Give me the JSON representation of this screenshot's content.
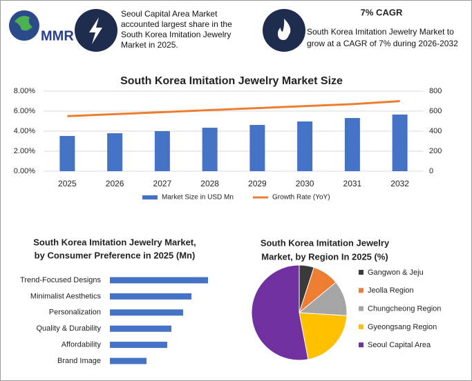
{
  "header": {
    "logo": "MMR",
    "share_note": "Seoul Capital Area Market accounted largest share in the South Korea Imitation Jewelry Market in 2025.",
    "cagr_title": "7% CAGR",
    "cagr_note": "South Korea Imitation Jewelry Market to grow at a CAGR of 7% during 2026-2032"
  },
  "chart_data": [
    {
      "type": "combo",
      "title": "South Korea Imitation Jewelry Market Size",
      "categories": [
        "2025",
        "2026",
        "2027",
        "2028",
        "2029",
        "2030",
        "2031",
        "2032"
      ],
      "series": [
        {
          "name": "Market Size in USD Mn",
          "type": "bar",
          "axis": "y2",
          "color": "#4472c4",
          "values": [
            352,
            379,
            400,
            434,
            462,
            497,
            531,
            566
          ]
        },
        {
          "name": "Growth Rate (YoY)",
          "type": "line",
          "color": "#ed7d31",
          "values": [
            5.5,
            5.7,
            5.9,
            6.1,
            6.3,
            6.5,
            6.7,
            7.0
          ]
        }
      ],
      "ylim": [
        0,
        8
      ],
      "yticks": [
        {
          "value": 0,
          "label": "0.00%"
        },
        {
          "value": 2,
          "label": "2.00%"
        },
        {
          "value": 4,
          "label": "4.00%"
        },
        {
          "value": 6,
          "label": "6.00%"
        },
        {
          "value": 8,
          "label": "8.00%"
        }
      ],
      "y2lim": [
        0,
        800
      ],
      "y2ticks": [
        0,
        200,
        400,
        600,
        800
      ],
      "grid": true,
      "legend": "bottom"
    },
    {
      "type": "hbar",
      "title": [
        "South Korea  Imitation Jewelry Market,",
        "by Consumer Preference  in 2025 (Mn)"
      ],
      "categories": [
        "Trend-Focused Designs",
        "Minimalist Aesthetics",
        "Personalization",
        "Quality & Durability",
        "Affordability",
        "Brand Image"
      ],
      "values": [
        142,
        118,
        106,
        89,
        83,
        53
      ],
      "color": "#4472c4"
    },
    {
      "type": "pie",
      "title": [
        "South Korea Imitation Jewelry",
        "Market, by Region In 2025 (%)"
      ],
      "categories": [
        "Gangwon & Jeju",
        "Jeolla Region",
        "Chungcheong Region",
        "Gyeongsang Region",
        "Seoul Capital Area"
      ],
      "values": [
        5,
        9,
        12,
        21,
        53
      ],
      "colors": [
        "#3a3a3a",
        "#ed7d31",
        "#a5a5a5",
        "#ffc000",
        "#7030a0"
      ],
      "legend": "right"
    }
  ]
}
